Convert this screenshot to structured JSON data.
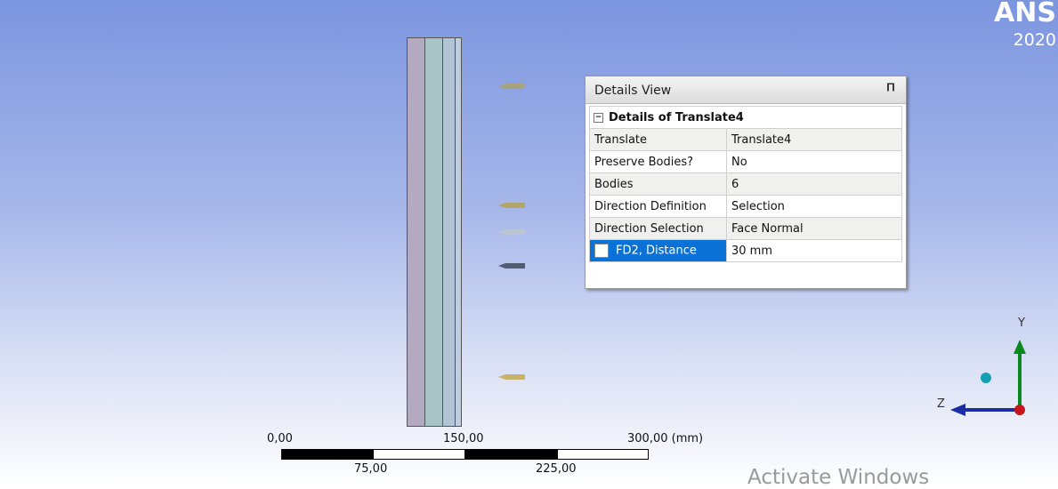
{
  "branding": {
    "product": "ANS",
    "version": "2020"
  },
  "details_view": {
    "title": "Details View",
    "section": "Details of Translate4",
    "rows": [
      [
        "Translate",
        "Translate4"
      ],
      [
        "Preserve Bodies?",
        "No"
      ],
      [
        "Bodies",
        "6"
      ],
      [
        "Direction Definition",
        "Selection"
      ],
      [
        "Direction Selection",
        "Face Normal"
      ],
      [
        "FD2, Distance",
        "30 mm"
      ]
    ]
  },
  "scale_bar": {
    "labels_top": [
      "0,00",
      "150,00",
      "300,00 (mm)"
    ],
    "labels_bottom": [
      "75,00",
      "225,00"
    ]
  },
  "triad": {
    "y_label": "Y",
    "z_label": "Z"
  },
  "watermark": "Activate Windows"
}
